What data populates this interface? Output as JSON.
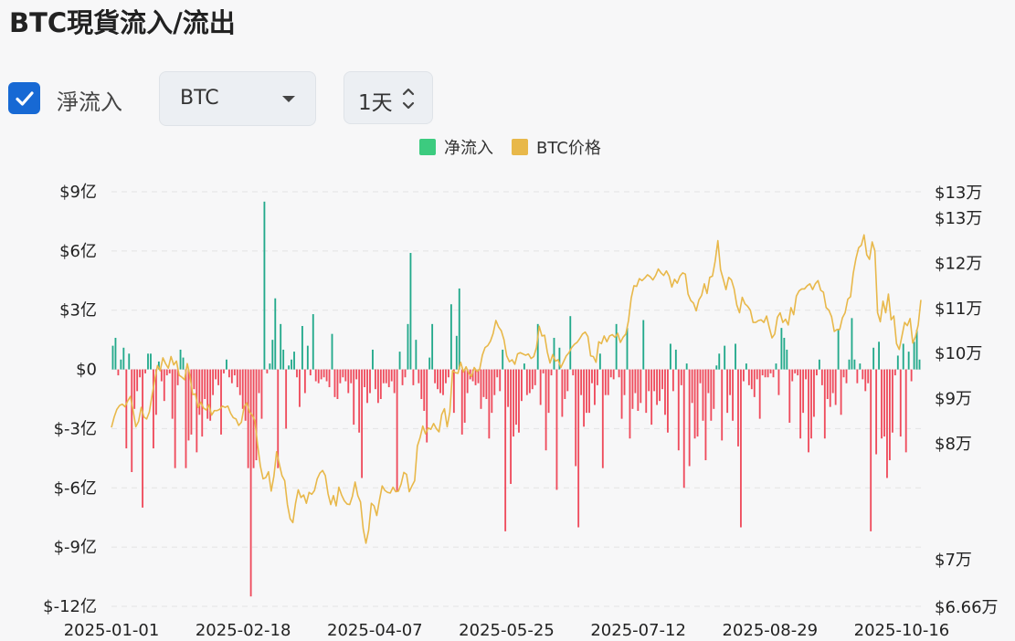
{
  "title": "BTC現貨流入/流出",
  "controls": {
    "net_checkbox_label": "淨流入",
    "net_checked": true,
    "asset_value": "BTC",
    "interval_value": "1天",
    "icons": {
      "checkbox": "check-icon",
      "asset": "caret-down-icon",
      "interval": "up-down-spinner-icon"
    }
  },
  "legend": [
    {
      "label": "净流入",
      "color": "#3ccb7f"
    },
    {
      "label": "BTC价格",
      "color": "#e8b84a"
    }
  ],
  "colors": {
    "inflow": "#22a98b",
    "outflow": "#ef4b5c",
    "price": "#e8b84a",
    "grid": "#e3e3e3"
  },
  "chart_data": {
    "type": "bar+line",
    "x_ticks": [
      "2025-01-01",
      "2025-02-18",
      "2025-04-07",
      "2025-05-25",
      "2025-07-12",
      "2025-08-29",
      "2025-10-16"
    ],
    "x_range": [
      "2025-01-01",
      "2025-10-23"
    ],
    "left_axis": {
      "ticks": [
        "$9亿",
        "$6亿",
        "$3亿",
        "$0",
        "$-3亿",
        "$-6亿",
        "$-9亿",
        "$-12亿"
      ],
      "tick_values": [
        9,
        6,
        3,
        0,
        -3,
        -6,
        -9,
        -12
      ],
      "unit": "亿 USD",
      "range": [
        -12,
        9
      ]
    },
    "right_axis": {
      "ticks": [
        "$13万",
        "$13万",
        "$12万",
        "$11万",
        "$10万",
        "$9万",
        "$8万",
        "$7万",
        "$6.66万"
      ],
      "tick_values": [
        131000,
        127000,
        120000,
        113000,
        106000,
        99000,
        92000,
        74000,
        66600
      ],
      "unit": "USD",
      "range": [
        66600,
        131000
      ]
    },
    "grid": true,
    "legend_position": "top-center",
    "series": [
      {
        "name": "净流入",
        "kind": "bar",
        "values": [
          1.2,
          1.6,
          -0.3,
          0.5,
          1.1,
          -4,
          0.8,
          -5.2,
          -2,
          -1.1,
          -0.4,
          -7,
          -0.2,
          0.8,
          0.8,
          -4,
          -2.3,
          0.4,
          -0.6,
          -1.6,
          -0.3,
          -0.2,
          -2.5,
          -5,
          -0.8,
          1,
          0.6,
          -5,
          -3.6,
          -3.3,
          -1,
          -4.2,
          -2.3,
          -3.4,
          -1.5,
          -2.5,
          -2.6,
          -1.3,
          -0.5,
          -0.8,
          -3.3,
          -0.2,
          0.5,
          -0.4,
          -0.7,
          -0.3,
          -0.9,
          -1.3,
          -2,
          -2.6,
          -5,
          -11.5,
          -5,
          -4.6,
          -1.2,
          -2.5,
          8.5,
          -0.2,
          0.3,
          1.5,
          3.6,
          -5,
          2.3,
          1,
          -3,
          0.2,
          0.5,
          0.9,
          -0.4,
          -1.9,
          2.2,
          -1.2,
          1.2,
          -0.3,
          2.8,
          -0.6,
          -0.7,
          -0.5,
          -0.4,
          -0.6,
          -0.9,
          1.8,
          -1.4,
          -1.5,
          -0.7,
          -0.4,
          -0.6,
          -1.2,
          -0.7,
          -2.8,
          -0.5,
          -3.2,
          -5.5,
          -0.9,
          -1.7,
          -1.2,
          1,
          -1,
          -1.7,
          -1.5,
          -0.7,
          -0.7,
          -0.9,
          -0.6,
          -1.2,
          -6.2,
          0.9,
          -0.8,
          -0.4,
          2.3,
          5.9,
          -0.8,
          1.5,
          -0.7,
          -1.5,
          -2.1,
          -3.7,
          0.6,
          2.3,
          -0.7,
          -1,
          -1.2,
          -1.3,
          -0.7,
          -0.4,
          3.3,
          -2.2,
          1.7,
          4.1,
          -3.3,
          -2.7,
          -1.2,
          -0.5,
          -0.6,
          -0.8,
          -0.7,
          -2,
          -1.4,
          -1.5,
          -3.5,
          -2.2,
          -1.3,
          -0.4,
          -1.1,
          1,
          -8.2,
          -1.9,
          -5.8,
          -3.4,
          -2.8,
          -3.2,
          -1.6,
          0.3,
          -1.3,
          -1.2,
          -1,
          -0.8,
          2.3,
          -1.8,
          -0.2,
          -4.1,
          -2.2,
          -0.3,
          1.6,
          -6.1,
          1.1,
          -2.4,
          -1.5,
          -1.1,
          2.7,
          -0.3,
          -4.9,
          -8,
          -1.3,
          -2.9,
          -2.2,
          -2.2,
          -0.7,
          -1.8,
          -0.8,
          0.8,
          -5,
          -1.3,
          -1.3,
          -0.4,
          -0.5,
          2.3,
          -0.4,
          -2.5,
          -1.3,
          2.1,
          -3.5,
          -2,
          -1.2,
          -2.1,
          -1.7,
          2.5,
          -2.2,
          -1.1,
          -2.8,
          -1.1,
          -1.8,
          -1.6,
          -1,
          -2.3,
          -3.2,
          1.3,
          -1.1,
          1,
          -4.1,
          -0.8,
          -6,
          0.3,
          -4.9,
          -1.7,
          -3.5,
          -3.4,
          -0.7,
          -2.6,
          -4.6,
          -1.2,
          -2.6,
          -2,
          0.2,
          0.8,
          -3.6,
          1.2,
          -2.2,
          -1.3,
          -2.6,
          1.3,
          -3.9,
          -8,
          -0.6,
          0.3,
          -0.8,
          -1,
          -1.4,
          -0.5,
          -2.5,
          -0.3,
          -0.4,
          -0.4,
          -0.2,
          -0.4,
          0.3,
          -1.3,
          2.1,
          1.6,
          1,
          -2.7,
          -0.6,
          -0.2,
          -0.3,
          -3.5,
          -2.2,
          -0.5,
          -4.2,
          -3.5,
          -2.4,
          -0.3,
          0.5,
          -0.8,
          -3.5,
          -1.5,
          -1.9,
          -1.2,
          -1.8,
          2,
          -2.3,
          -0.4,
          -0.7,
          0.5,
          2.6,
          0.5,
          -0.7,
          0.3,
          -0.5,
          -1.1,
          -0.7,
          -8.2,
          1.1,
          -4.3,
          1.4,
          -3.5,
          -3.4,
          -5.5,
          -4.6,
          -3.2,
          -0.3,
          0.7,
          -3.4,
          1.3,
          -4.2,
          0.9,
          -0.6,
          1.4,
          2,
          0.5
        ]
      },
      {
        "name": "BTC价格",
        "kind": "line",
        "values": [
          94400,
          96000,
          97200,
          97800,
          98000,
          97600,
          98500,
          99200,
          97000,
          94500,
          95300,
          97500,
          96000,
          95700,
          96800,
          99400,
          101800,
          104000,
          103200,
          105200,
          104300,
          103600,
          105400,
          104100,
          104700,
          102500,
          102200,
          101800,
          104300,
          102400,
          99500,
          99600,
          97500,
          98300,
          97400,
          97100,
          97900,
          96300,
          97000,
          97000,
          97200,
          97700,
          97500,
          97700,
          96600,
          95900,
          95700,
          94700,
          95200,
          97600,
          98200,
          96800,
          96300,
          95400,
          91600,
          88400,
          86400,
          86600,
          87500,
          84500,
          86800,
          90600,
          88700,
          86900,
          86100,
          82400,
          80200,
          79600,
          82600,
          84700,
          83500,
          83900,
          82600,
          84300,
          84000,
          84600,
          86400,
          87300,
          87700,
          86900,
          84100,
          82400,
          83800,
          82200,
          85100,
          83900,
          83000,
          82500,
          82400,
          83700,
          85900,
          83800,
          82800,
          78600,
          76400,
          78400,
          82600,
          82200,
          80700,
          83100,
          85300,
          84600,
          84300,
          84200,
          85100,
          84400,
          84500,
          85600,
          87400,
          87100,
          84400,
          85300,
          86100,
          91500,
          92800,
          94600,
          93400,
          94300,
          94100,
          95000,
          94200,
          93700,
          96400,
          97300,
          94500,
          96800,
          103200,
          102900,
          102800,
          104500,
          103000,
          103800,
          102800,
          102300,
          103700,
          103100,
          103400,
          105600,
          106800,
          107100,
          107800,
          109000,
          111000,
          110000,
          109400,
          108000,
          105500,
          104600,
          104900,
          104200,
          105800,
          106000,
          105800,
          105600,
          105800,
          105100,
          105400,
          106800,
          110100,
          108600,
          108700,
          106100,
          104400,
          105700,
          104700,
          104900,
          103700,
          104600,
          105500,
          106000,
          106800,
          107300,
          107600,
          108200,
          108900,
          109200,
          108500,
          105500,
          105400,
          104500,
          107700,
          107400,
          108600,
          107700,
          108600,
          108800,
          108400,
          109000,
          107600,
          108400,
          108900,
          111000,
          114500,
          116400,
          116300,
          117500,
          117200,
          117600,
          118100,
          117800,
          117300,
          118000,
          119000,
          118400,
          118000,
          118700,
          117900,
          116200,
          117400,
          116800,
          117900,
          118400,
          118200,
          115100,
          114100,
          113700,
          112500,
          114200,
          114900,
          116700,
          115200,
          117700,
          117900,
          120200,
          123400,
          118900,
          117400,
          115800,
          117700,
          117300,
          115900,
          113400,
          112200,
          114600,
          113600,
          113200,
          112600,
          110700,
          110700,
          111000,
          111100,
          110700,
          111700,
          109900,
          108300,
          108900,
          111500,
          112200,
          110700,
          111200,
          110300,
          113000,
          111900,
          114800,
          115600,
          115900,
          115900,
          116400,
          116700,
          115800,
          116700,
          117200,
          115700,
          115400,
          113000,
          112600,
          111600,
          109300,
          109600,
          109600,
          111400,
          112200,
          114300,
          114700,
          118300,
          120600,
          122300,
          122700,
          124300,
          121200,
          120500,
          123200,
          121800,
          112200,
          110800,
          114000,
          112200,
          115100,
          111100,
          111700,
          107400,
          106500,
          108600,
          110700,
          110200,
          111300,
          107500,
          108500,
          110300,
          114200
        ]
      }
    ]
  }
}
